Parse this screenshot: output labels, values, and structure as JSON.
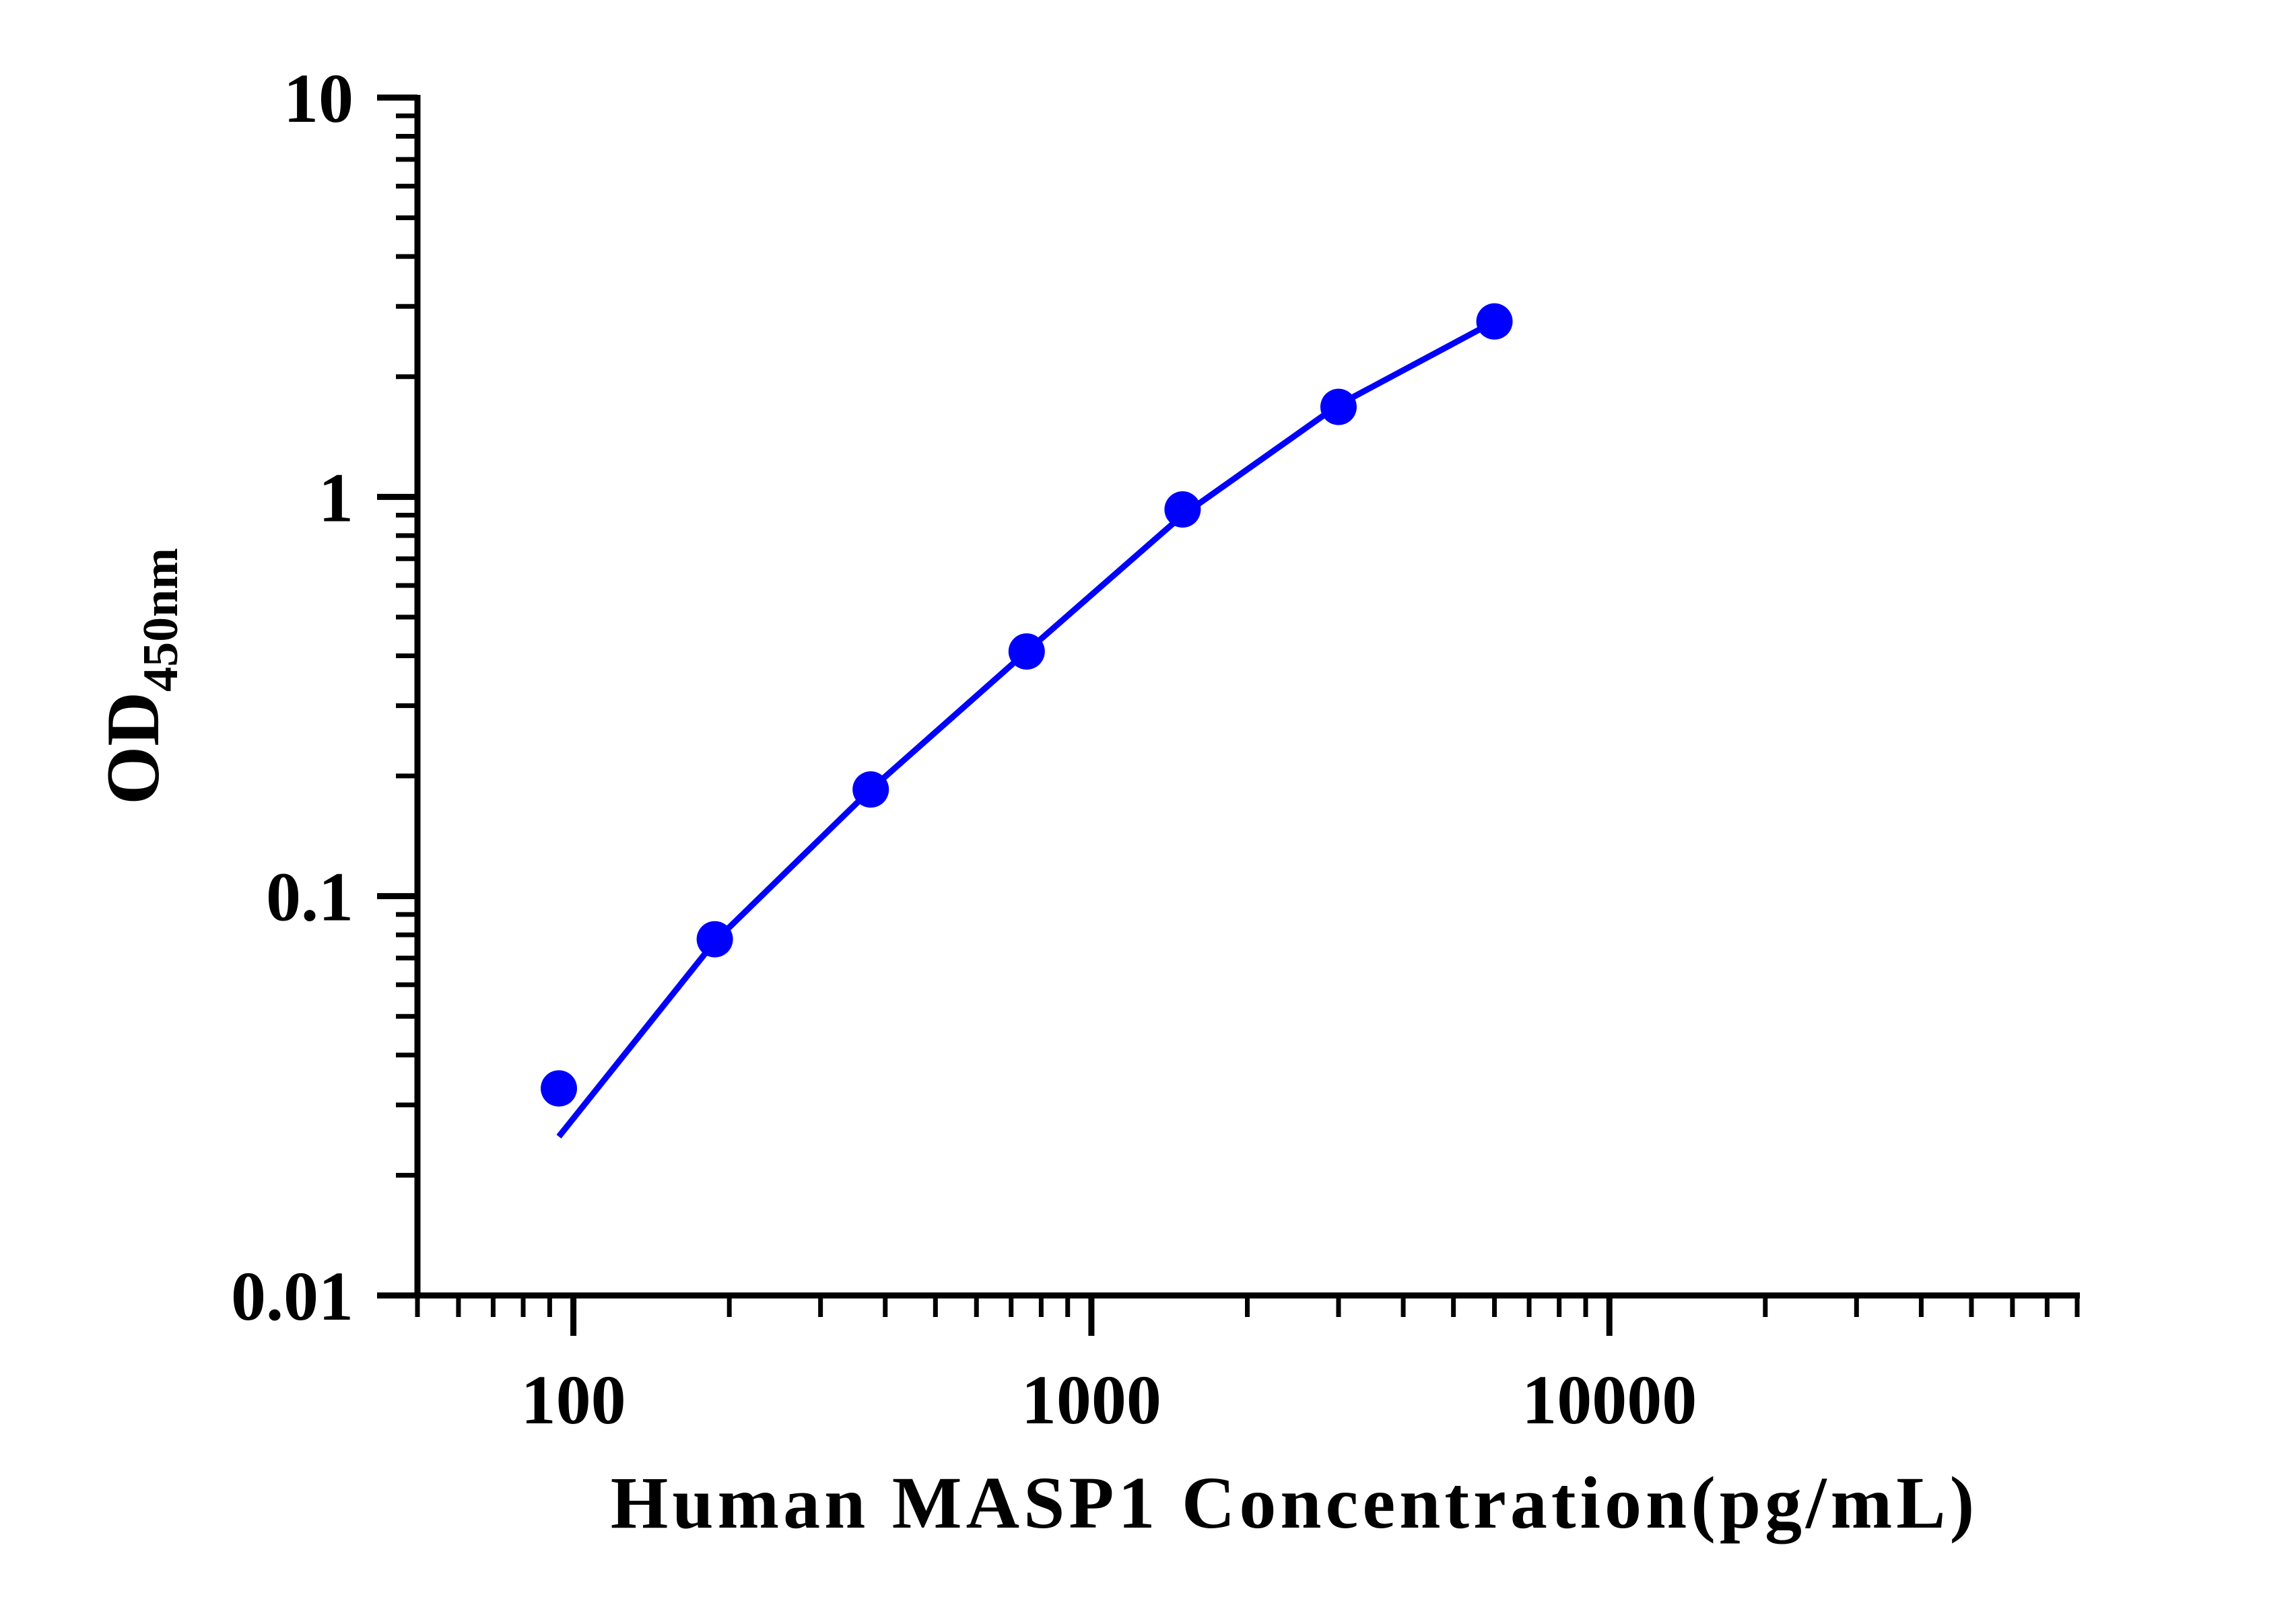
{
  "chart_data": {
    "type": "scatter",
    "title": "",
    "xlabel": "Human MASP1 Concentration(pg/mL)",
    "ylabel": "OD",
    "ylabel_subscript": "450nm",
    "x_scale": "log",
    "y_scale": "log",
    "xlim": [
      50,
      80000
    ],
    "ylim": [
      0.01,
      10
    ],
    "x_ticks": [
      {
        "value": 100,
        "label": "100"
      },
      {
        "value": 1000,
        "label": "1000"
      },
      {
        "value": 10000,
        "label": "10000"
      }
    ],
    "y_ticks": [
      {
        "value": 10,
        "label": "10"
      },
      {
        "value": 1,
        "label": "1"
      },
      {
        "value": 0.1,
        "label": "0.1"
      },
      {
        "value": 0.01,
        "label": "0.01"
      }
    ],
    "grid": false,
    "legend": "none",
    "color": "#0000ff",
    "series": [
      {
        "points": [
          {
            "x": 93.75,
            "y": 0.033
          },
          {
            "x": 187.5,
            "y": 0.078
          },
          {
            "x": 375,
            "y": 0.185
          },
          {
            "x": 750,
            "y": 0.41
          },
          {
            "x": 1500,
            "y": 0.93
          },
          {
            "x": 3000,
            "y": 1.68
          },
          {
            "x": 6000,
            "y": 2.75
          }
        ],
        "fit_curve": [
          {
            "x": 93.75,
            "y": 0.025
          },
          {
            "x": 187.5,
            "y": 0.077
          },
          {
            "x": 375,
            "y": 0.185
          },
          {
            "x": 750,
            "y": 0.41
          },
          {
            "x": 1500,
            "y": 0.9
          },
          {
            "x": 3000,
            "y": 1.7
          },
          {
            "x": 6000,
            "y": 2.75
          }
        ]
      }
    ]
  }
}
